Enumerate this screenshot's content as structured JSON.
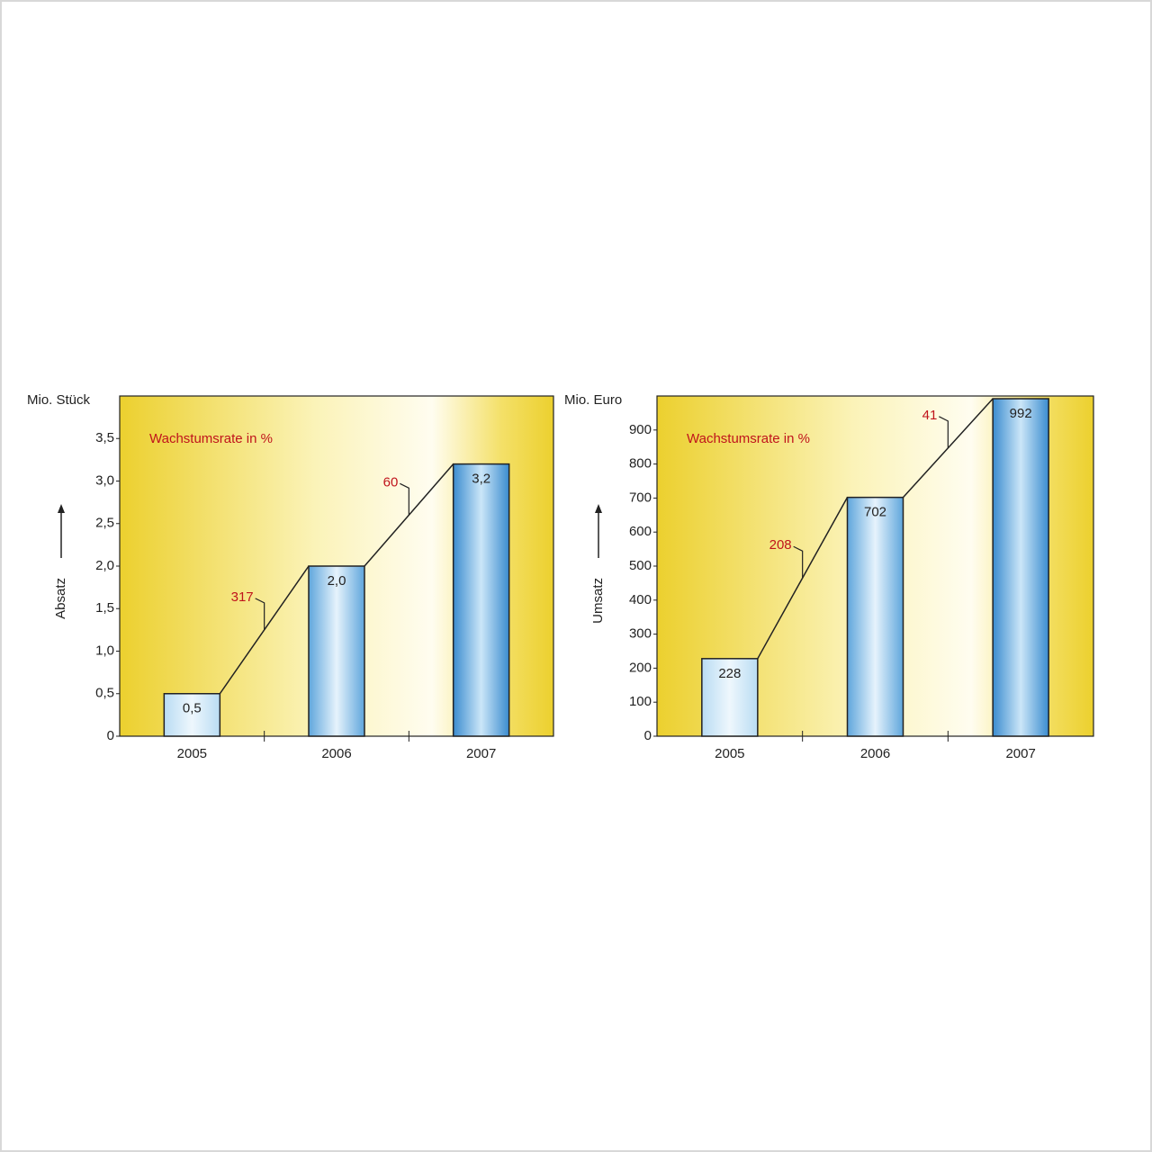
{
  "chart_data": [
    {
      "type": "bar",
      "y_unit": "Mio. Stück",
      "y_label": "Absatz",
      "annotation": "Wachstumsrate in %",
      "categories": [
        "2005",
        "2006",
        "2007"
      ],
      "values": [
        0.5,
        2.0,
        3.2
      ],
      "value_labels": [
        "0,5",
        "2,0",
        "3,2"
      ],
      "growth_rates": [
        317,
        60
      ],
      "ylim": [
        0,
        4
      ],
      "yticks": [
        0,
        {
          "value": 0.5,
          "label": "0,5"
        },
        {
          "value": 1,
          "label": "1,0"
        },
        {
          "value": 1.5,
          "label": "1,5"
        },
        {
          "value": 2,
          "label": "2,0"
        },
        {
          "value": 2.5,
          "label": "2,5"
        },
        {
          "value": 3,
          "label": "3,0"
        },
        {
          "value": 3.5,
          "label": "3,5"
        }
      ]
    },
    {
      "type": "bar",
      "y_unit": "Mio. Euro",
      "y_label": "Umsatz",
      "annotation": "Wachstumsrate in %",
      "categories": [
        "2005",
        "2006",
        "2007"
      ],
      "values": [
        228,
        702,
        992
      ],
      "growth_rates": [
        208,
        41
      ],
      "ylim": [
        0,
        1000
      ],
      "yticks": [
        0,
        100,
        200,
        300,
        400,
        500,
        600,
        700,
        800,
        900
      ]
    }
  ]
}
